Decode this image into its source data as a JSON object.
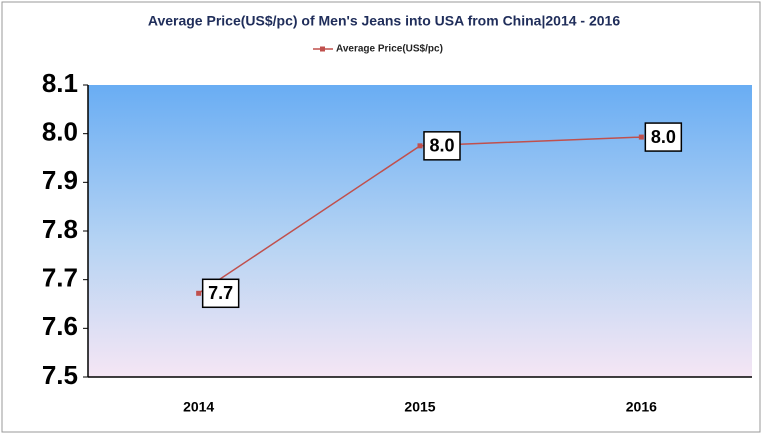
{
  "chart_data": {
    "type": "line",
    "title": "Average Price(US$/pc) of Men's Jeans into USA from China|2014 - 2016",
    "categories": [
      "2014",
      "2015",
      "2016"
    ],
    "series": [
      {
        "name": "Average Price(US$/pc)",
        "color": "#c0504d",
        "values": [
          7.672,
          7.975,
          7.993
        ],
        "value_labels": [
          "7.7",
          "8.0",
          "8.0"
        ]
      }
    ],
    "ylim": [
      7.5,
      8.1
    ],
    "yticks": [
      7.5,
      7.6,
      7.7,
      7.8,
      7.9,
      {
        "value": 8,
        "label": "8.0"
      },
      8.1
    ],
    "legend": "top"
  }
}
